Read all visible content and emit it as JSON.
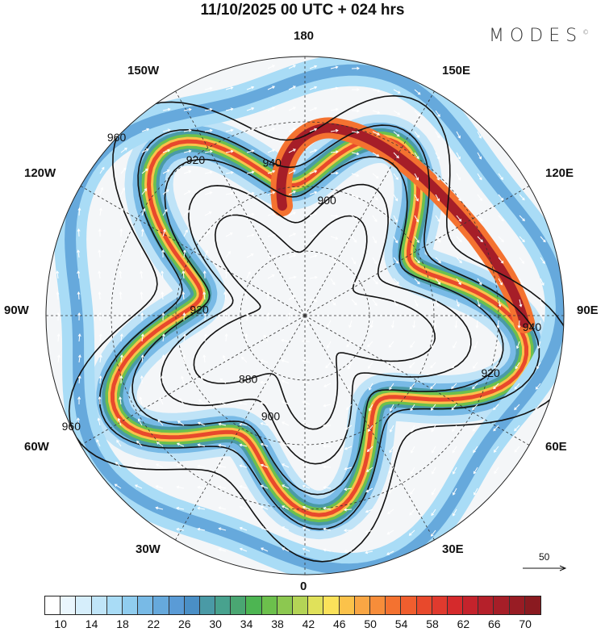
{
  "header": {
    "title": "11/10/2025  00 UTC  + 024 hrs",
    "logo": "MODES",
    "logo_mark": "©"
  },
  "longitude_labels": {
    "top": "180",
    "bottom": "0",
    "left": "90W",
    "right": "90E",
    "upper_left_1": "150W",
    "upper_left_2": "120W",
    "lower_left_1": "60W",
    "lower_left_2": "30W",
    "upper_right_1": "150E",
    "upper_right_2": "120E",
    "lower_right_1": "60E",
    "lower_right_2": "30E"
  },
  "contours": {
    "levels": [
      "880",
      "900",
      "920",
      "940",
      "960"
    ]
  },
  "reference_vector": {
    "label": "50"
  },
  "colorbar": {
    "labels": [
      "10",
      "14",
      "18",
      "22",
      "26",
      "30",
      "34",
      "38",
      "42",
      "46",
      "50",
      "54",
      "58",
      "62",
      "66",
      "70"
    ],
    "colors": [
      "#ffffff",
      "#eaf6fd",
      "#d6eefb",
      "#c0e5f8",
      "#a9dcf6",
      "#90cdef",
      "#78bae6",
      "#66a9dc",
      "#5a9bd6",
      "#4a8fc6",
      "#4a9aa6",
      "#48a28e",
      "#4aa672",
      "#4db552",
      "#6cc04c",
      "#8cc850",
      "#b4d456",
      "#e0e15a",
      "#fbe25a",
      "#fbc24a",
      "#f9a644",
      "#f78d3a",
      "#f47230",
      "#f05e2e",
      "#e8492c",
      "#e03a2e",
      "#d52a2c",
      "#c4232c",
      "#b5202a",
      "#a61e28",
      "#981c24",
      "#8a1a20"
    ]
  }
}
